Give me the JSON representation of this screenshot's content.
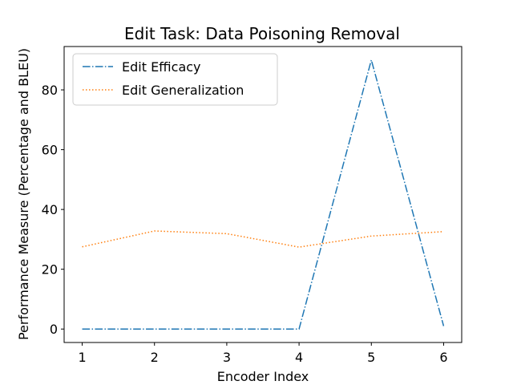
{
  "chart_data": {
    "type": "line",
    "title": "Edit Task: Data Poisoning Removal",
    "xlabel": "Encoder Index",
    "ylabel": "Performance Measure (Percentage and BLEU)",
    "x": [
      1,
      2,
      3,
      4,
      5,
      6
    ],
    "xticks": [
      "1",
      "2",
      "3",
      "4",
      "5",
      "6"
    ],
    "yticks": [
      "0",
      "20",
      "40",
      "60",
      "80"
    ],
    "xlim": [
      0.75,
      6.25
    ],
    "ylim": [
      -4.5,
      94.5
    ],
    "grid": false,
    "legend_position": "upper-left",
    "series": [
      {
        "name": "Edit Efficacy",
        "values": [
          0,
          0,
          0,
          0,
          90,
          1
        ],
        "color": "#1f77b4",
        "style": "dashdot"
      },
      {
        "name": "Edit Generalization",
        "values": [
          27.5,
          32.8,
          31.9,
          27.4,
          31.1,
          32.6
        ],
        "color": "#ff7f0e",
        "style": "dotted"
      }
    ]
  }
}
